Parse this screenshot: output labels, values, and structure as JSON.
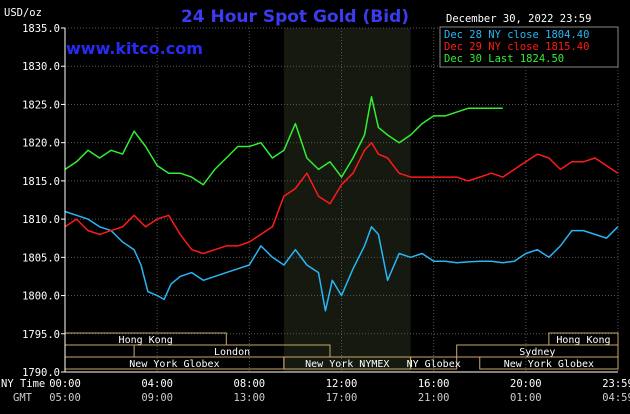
{
  "header": {
    "unit": "USD/oz",
    "title": "24 Hour Spot Gold (Bid)",
    "date": "December 30, 2022 23:59",
    "site": "www.kitco.com"
  },
  "colors": {
    "background": "#000000",
    "plot": "#000000",
    "grid": "#555555",
    "highlight": "#15190f",
    "axis_text": "#ffffff",
    "title": "#3b3bf0",
    "site": "#2a2af5",
    "dec28": "#29b6f6",
    "dec29": "#ff1a1a",
    "dec30": "#33ee33",
    "band_border": "#c9a96a",
    "band_text": "#000000"
  },
  "chart_data": {
    "type": "line",
    "title": "24 Hour Spot Gold (Bid)",
    "ylabel": "USD/oz",
    "xlabel": "NY Time / GMT",
    "ylim": [
      1790,
      1835
    ],
    "xlim_hours": [
      0,
      24
    ],
    "grid": true,
    "legend_position": "top-right",
    "y_ticks": [
      "1835.0",
      "1830.0",
      "1825.0",
      "1820.0",
      "1815.0",
      "1810.0",
      "1805.0",
      "1800.0",
      "1795.0",
      "1790.0"
    ],
    "x_ticks_ny": [
      "00:00",
      "04:00",
      "08:00",
      "12:00",
      "16:00",
      "20:00",
      "23:59"
    ],
    "x_ticks_gmt": [
      "05:00",
      "09:00",
      "13:00",
      "17:00",
      "21:00",
      "01:00",
      "04:59"
    ],
    "x_axis_labels": [
      "NY Time",
      "GMT"
    ],
    "highlight_window_hours": [
      9.5,
      15
    ],
    "series": [
      {
        "name": "Dec 28 NY close 1804.40",
        "color_key": "dec28",
        "x": [
          0,
          0.5,
          1,
          1.5,
          2,
          2.5,
          3,
          3.3,
          3.6,
          4,
          4.3,
          4.6,
          5,
          5.5,
          6,
          6.5,
          7,
          7.5,
          8,
          8.5,
          9,
          9.5,
          10,
          10.5,
          11,
          11.3,
          11.6,
          12,
          12.5,
          13,
          13.3,
          13.6,
          14,
          14.5,
          15,
          15.5,
          16,
          16.5,
          17,
          17.5,
          18,
          18.5,
          19,
          19.5,
          20,
          20.5,
          21,
          21.5,
          22,
          22.5,
          23,
          23.5,
          23.99
        ],
        "y": [
          1811,
          1810.5,
          1810,
          1809,
          1808.5,
          1807,
          1806,
          1804,
          1800.5,
          1800,
          1799.5,
          1801.5,
          1802.5,
          1803,
          1802,
          1802.5,
          1803,
          1803.5,
          1804,
          1806.5,
          1805,
          1804,
          1806,
          1804,
          1803,
          1798,
          1802,
          1800,
          1803.5,
          1806.5,
          1809,
          1808,
          1802,
          1805.5,
          1805,
          1805.5,
          1804.5,
          1804.5,
          1804.3,
          1804.4,
          1804.5,
          1804.5,
          1804.3,
          1804.5,
          1805.5,
          1806,
          1805,
          1806.5,
          1808.5,
          1808.5,
          1808,
          1807.5,
          1809
        ]
      },
      {
        "name": "Dec 29 NY close 1815.40",
        "color_key": "dec29",
        "x": [
          0,
          0.5,
          1,
          1.5,
          2,
          2.5,
          3,
          3.5,
          4,
          4.5,
          5,
          5.5,
          6,
          6.5,
          7,
          7.5,
          8,
          8.5,
          9,
          9.5,
          10,
          10.5,
          11,
          11.5,
          12,
          12.5,
          13,
          13.3,
          13.6,
          14,
          14.5,
          15,
          15.5,
          16,
          16.5,
          17,
          17.5,
          18,
          18.5,
          19,
          19.5,
          20,
          20.5,
          21,
          21.5,
          22,
          22.5,
          23,
          23.5,
          23.99
        ],
        "y": [
          1809,
          1810,
          1808.5,
          1808,
          1808.5,
          1809,
          1810.5,
          1809,
          1810,
          1810.5,
          1808,
          1806,
          1805.5,
          1806,
          1806.5,
          1806.5,
          1807,
          1808,
          1809,
          1813,
          1814,
          1816,
          1813,
          1812,
          1814.5,
          1816,
          1819,
          1820,
          1818.5,
          1818,
          1816,
          1815.5,
          1815.5,
          1815.5,
          1815.5,
          1815.5,
          1815,
          1815.5,
          1816,
          1815.5,
          1816.5,
          1817.5,
          1818.5,
          1818,
          1816.5,
          1817.5,
          1817.5,
          1818,
          1817,
          1816
        ]
      },
      {
        "name": "Dec 30 Last 1824.50",
        "color_key": "dec30",
        "x": [
          0,
          0.5,
          1,
          1.5,
          2,
          2.5,
          3,
          3.5,
          4,
          4.5,
          5,
          5.5,
          6,
          6.5,
          7,
          7.5,
          8,
          8.5,
          9,
          9.5,
          10,
          10.5,
          11,
          11.5,
          12,
          12.5,
          13,
          13.3,
          13.6,
          14,
          14.5,
          15,
          15.5,
          16,
          16.5,
          17,
          17.5,
          18,
          18.5,
          19,
          19.5,
          20,
          20.5,
          21,
          21.5,
          22,
          22.5,
          23,
          23.5,
          23.99
        ],
        "y": [
          1816.5,
          1817.5,
          1819,
          1818,
          1819,
          1818.5,
          1821.5,
          1819.5,
          1817,
          1816,
          1816,
          1815.5,
          1814.5,
          1816.5,
          1818,
          1819.5,
          1819.5,
          1820,
          1818,
          1819,
          1822.5,
          1818,
          1816.5,
          1817.5,
          1815.5,
          1818,
          1821,
          1826,
          1822,
          1821,
          1820,
          1821,
          1822.5,
          1823.5,
          1823.5,
          1824,
          1824.5,
          1824.5,
          1824.5,
          1824.5,
          null,
          null,
          null,
          null,
          null,
          null,
          null,
          null,
          null,
          null
        ]
      }
    ],
    "bands": [
      {
        "row": 1,
        "label": "Hong Kong",
        "start": 0,
        "end": 7
      },
      {
        "row": 1,
        "label": "Hong Kong",
        "start": 21,
        "end": 24
      },
      {
        "row": 2,
        "label": "London",
        "start": 3,
        "end": 11.5
      },
      {
        "row": 2,
        "label": "Sydney",
        "start": 17,
        "end": 24
      },
      {
        "row": 3,
        "label": "New York Globex",
        "start": 0,
        "end": 9.5
      },
      {
        "row": 3,
        "label": "New York NYMEX",
        "start": 9.5,
        "end": 15
      },
      {
        "row": 3,
        "label": "NY Globex",
        "start": 15,
        "end": 17
      },
      {
        "row": 3,
        "label": "New York Globex",
        "start": 18,
        "end": 24
      }
    ]
  }
}
